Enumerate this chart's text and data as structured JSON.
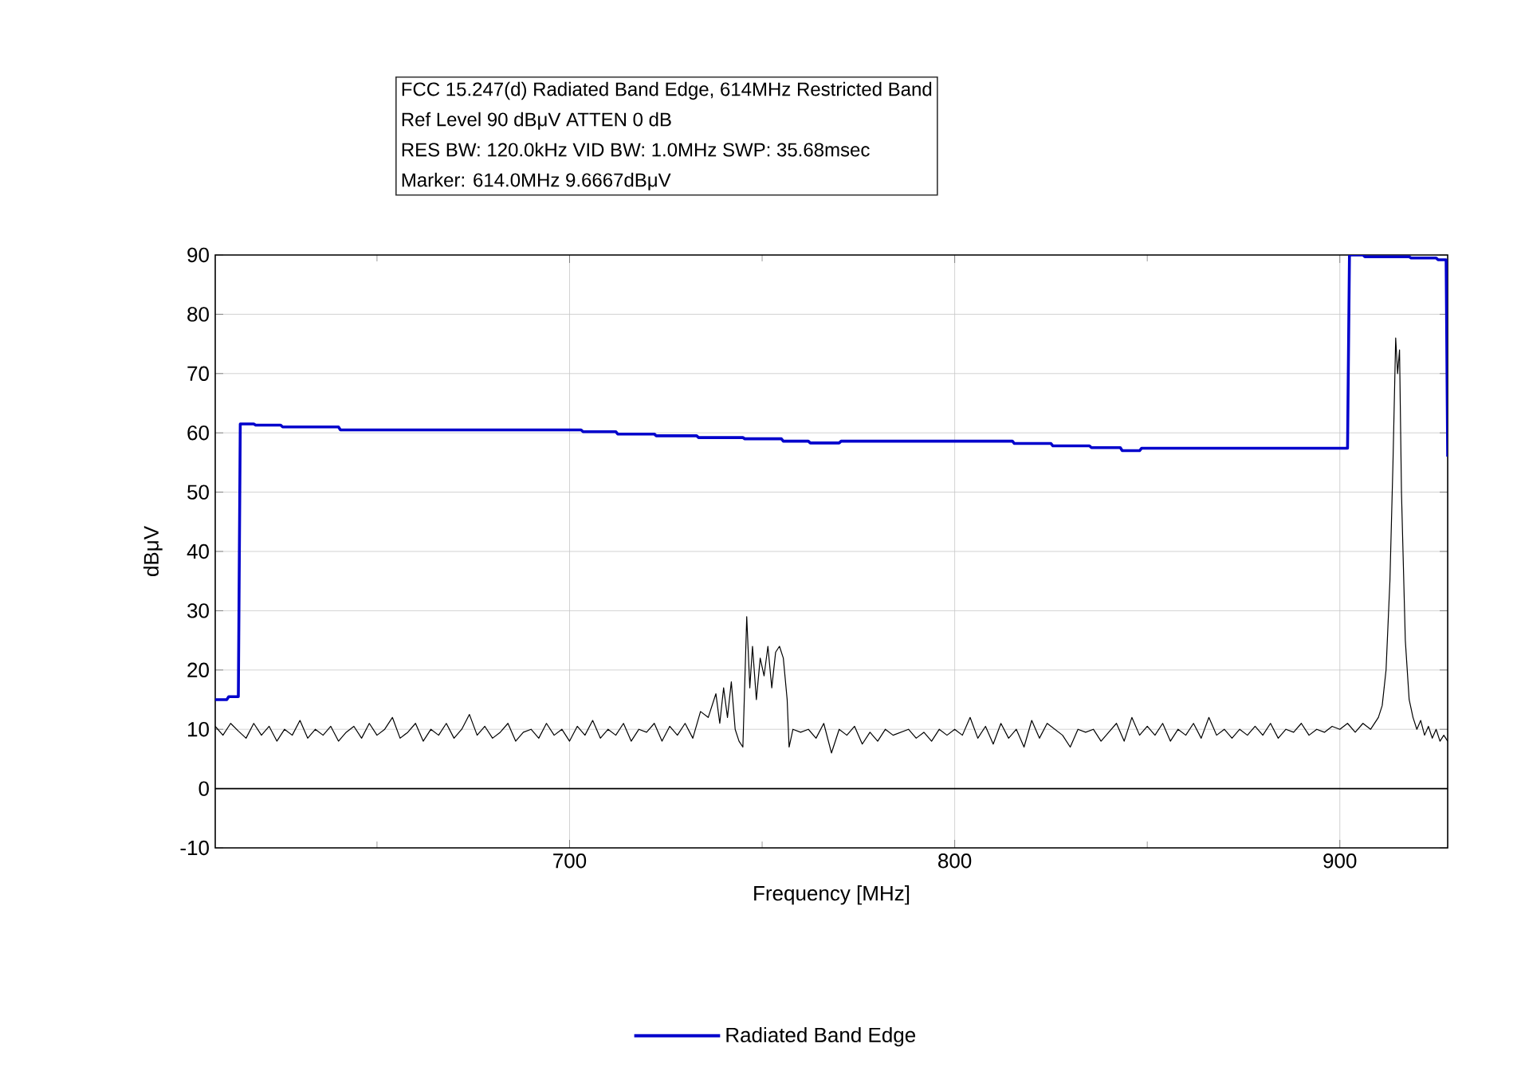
{
  "chart_data": {
    "type": "line",
    "title": "FCC 15.247(d) Radiated Band Edge, 614MHz Restricted Band",
    "annotations": [
      "Ref Level 90 dBμV    ATTEN 0 dB",
      "RES BW: 120.0kHz  VID BW: 1.0MHz  SWP: 35.68msec",
      "Marker: 614.0MHz  9.6667dBμV"
    ],
    "xlabel": "Frequency [MHz]",
    "ylabel": "dBμV",
    "xlim": [
      608,
      928
    ],
    "ylim": [
      -10,
      90
    ],
    "xticks": [
      {
        "value": 650,
        "label": null
      },
      700,
      {
        "value": 750,
        "label": null
      },
      800,
      {
        "value": 850,
        "label": null
      },
      900
    ],
    "yticks": [
      -10,
      0,
      10,
      20,
      30,
      40,
      50,
      60,
      70,
      80,
      90
    ],
    "grid": true,
    "legend": "bottom",
    "marker": "none",
    "line_style": "solid",
    "ref_lines": [
      {
        "axis": "y",
        "value": 0,
        "color": "#000000"
      }
    ],
    "series": [
      {
        "name": "Radiated Band Edge",
        "color": "#0000cc",
        "x": [
          608,
          611,
          611.5,
          614,
          614.5,
          618,
          618.5,
          625,
          625.5,
          640,
          640.5,
          703,
          703.5,
          712,
          712.5,
          722,
          722.5,
          733,
          733.5,
          745,
          745.5,
          755,
          755.5,
          762,
          762.5,
          770,
          770.5,
          815,
          815.5,
          825,
          825.5,
          835,
          835.5,
          843,
          843.5,
          848,
          848.5,
          902,
          902.5,
          906,
          906.5,
          918,
          918.5,
          925,
          925.5,
          927.6,
          928
        ],
        "values": [
          15,
          15,
          15.5,
          15.5,
          61.5,
          61.5,
          61.3,
          61.3,
          61,
          61,
          60.5,
          60.5,
          60.2,
          60.2,
          59.8,
          59.8,
          59.5,
          59.5,
          59.2,
          59.2,
          59,
          59,
          58.6,
          58.6,
          58.3,
          58.3,
          58.6,
          58.6,
          58.2,
          58.2,
          57.8,
          57.8,
          57.5,
          57.5,
          57,
          57,
          57.4,
          57.4,
          90,
          90,
          89.7,
          89.7,
          89.5,
          89.5,
          89.2,
          89.2,
          56
        ]
      },
      {
        "color": "#000000",
        "x": [
          608,
          610,
          612,
          614,
          616,
          618,
          620,
          622,
          624,
          626,
          628,
          630,
          632,
          634,
          636,
          638,
          640,
          642,
          644,
          646,
          648,
          650,
          652,
          654,
          656,
          658,
          660,
          662,
          664,
          666,
          668,
          670,
          672,
          674,
          676,
          678,
          680,
          682,
          684,
          686,
          688,
          690,
          692,
          694,
          696,
          698,
          700,
          702,
          704,
          706,
          708,
          710,
          712,
          714,
          716,
          718,
          720,
          722,
          724,
          726,
          728,
          730,
          732,
          734,
          736,
          738,
          739,
          740,
          741,
          742,
          743,
          744,
          745,
          746,
          746.8,
          747.5,
          748.5,
          749.5,
          750.5,
          751.5,
          752.5,
          753.5,
          754.5,
          755.5,
          756.5,
          757,
          758,
          760,
          762,
          764,
          766,
          768,
          770,
          772,
          774,
          776,
          778,
          780,
          782,
          784,
          786,
          788,
          790,
          792,
          794,
          796,
          798,
          800,
          802,
          804,
          806,
          808,
          810,
          812,
          814,
          816,
          818,
          820,
          822,
          824,
          826,
          828,
          830,
          832,
          834,
          836,
          838,
          840,
          842,
          844,
          846,
          848,
          850,
          852,
          854,
          856,
          858,
          860,
          862,
          864,
          866,
          868,
          870,
          872,
          874,
          876,
          878,
          880,
          882,
          884,
          886,
          888,
          890,
          892,
          894,
          896,
          898,
          900,
          902,
          904,
          906,
          908,
          910,
          911,
          912,
          913,
          913.8,
          914.5,
          915,
          915.5,
          916,
          917,
          918,
          919,
          920,
          921,
          922,
          923,
          924,
          925,
          926,
          927,
          928
        ],
        "values": [
          10.5,
          9,
          11,
          9.7,
          8.5,
          11,
          9,
          10.5,
          8,
          10,
          9,
          11.5,
          8.5,
          10,
          9,
          10.5,
          8,
          9.5,
          10.5,
          8.5,
          11,
          9,
          10,
          12,
          8.5,
          9.5,
          11,
          8,
          10,
          9,
          11,
          8.5,
          10,
          12.5,
          9,
          10.5,
          8.5,
          9.5,
          11,
          8,
          9.5,
          10,
          8.5,
          11,
          9,
          10,
          8,
          10.5,
          9,
          11.5,
          8.5,
          10,
          9,
          11,
          8,
          10,
          9.5,
          11,
          8,
          10.5,
          9,
          11,
          8.5,
          13,
          12,
          16,
          11,
          17,
          12,
          18,
          10,
          8,
          7,
          29,
          17,
          24,
          15,
          22,
          19,
          24,
          17,
          23,
          24,
          22,
          15,
          7,
          10,
          9.5,
          10,
          8.5,
          11,
          6,
          10,
          9,
          10.5,
          7.5,
          9.5,
          8,
          10,
          9,
          9.5,
          10,
          8.5,
          9.5,
          8,
          10,
          9,
          10,
          9,
          12,
          8.5,
          10.5,
          7.5,
          11,
          8.5,
          10,
          7,
          11.5,
          8.5,
          11,
          10,
          9,
          7,
          10,
          9.5,
          10,
          8,
          9.5,
          11,
          8,
          12,
          9,
          10.5,
          9,
          11,
          8,
          10,
          9,
          11,
          8.5,
          12,
          9,
          10,
          8.5,
          10,
          9,
          10.5,
          9,
          11,
          8.5,
          10,
          9.5,
          11,
          9,
          10,
          9.5,
          10.5,
          10,
          11,
          9.5,
          11,
          10,
          12,
          14,
          20,
          35,
          55,
          76,
          70,
          74,
          50,
          25,
          15,
          12,
          10,
          11.5,
          9,
          10.5,
          8.5,
          10,
          8,
          9,
          8
        ]
      }
    ]
  }
}
